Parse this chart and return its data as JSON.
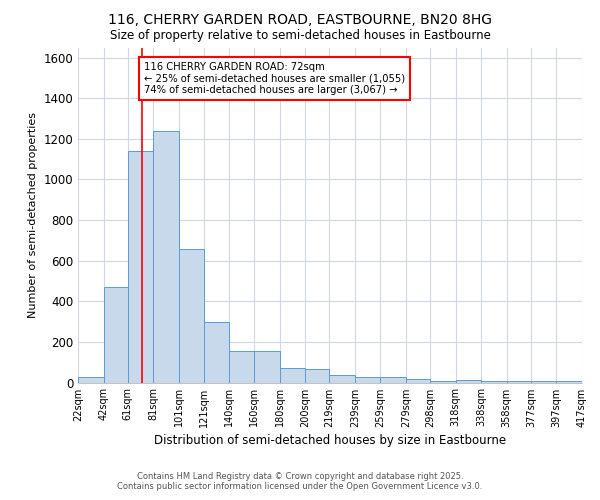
{
  "title1": "116, CHERRY GARDEN ROAD, EASTBOURNE, BN20 8HG",
  "title2": "Size of property relative to semi-detached houses in Eastbourne",
  "xlabel": "Distribution of semi-detached houses by size in Eastbourne",
  "ylabel": "Number of semi-detached properties",
  "bin_edges": [
    22,
    42,
    61,
    81,
    101,
    121,
    140,
    160,
    180,
    200,
    219,
    239,
    259,
    279,
    298,
    318,
    338,
    358,
    377,
    397,
    417
  ],
  "bar_heights": [
    25,
    470,
    1140,
    1240,
    660,
    300,
    155,
    155,
    70,
    68,
    38,
    28,
    25,
    18,
    5,
    12,
    5,
    5,
    5,
    5
  ],
  "bar_color": "#c9d9ec",
  "bar_edge_color": "#5b9bd5",
  "red_line_x": 72,
  "annotation_line1": "116 CHERRY GARDEN ROAD: 72sqm",
  "annotation_line2": "← 25% of semi-detached houses are smaller (1,055)",
  "annotation_line3": "74% of semi-detached houses are larger (3,067) →",
  "annotation_box_color": "white",
  "annotation_box_edge_color": "red",
  "footer1": "Contains HM Land Registry data © Crown copyright and database right 2025.",
  "footer2": "Contains public sector information licensed under the Open Government Licence v3.0.",
  "ylim": [
    0,
    1650
  ],
  "background_color": "#ffffff",
  "plot_bg_color": "#ffffff",
  "grid_color": "#d0d8e8"
}
